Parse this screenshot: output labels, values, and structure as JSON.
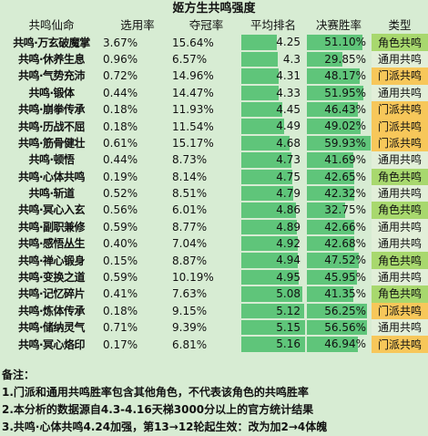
{
  "title": "姬方生共鸣强度",
  "headers": [
    "共鸣仙命",
    "选用率",
    "夺冠率",
    "平均排名",
    "决赛胜率",
    "类型"
  ],
  "type_colors": {
    "角色共鸣": "#a8d86e",
    "通用共鸣": "#e2efd9",
    "门派共鸣": "#f7c75a"
  },
  "chart_data": {
    "type": "table",
    "title": "姬方生共鸣强度",
    "columns": [
      "共鸣仙命",
      "选用率",
      "夺冠率",
      "平均排名",
      "决赛胜率",
      "类型"
    ],
    "rows": [
      [
        "共鸣·万玄破魔掌",
        "3.67%",
        "15.64%",
        "4.25",
        "51.10%",
        "角色共鸣"
      ],
      [
        "共鸣·休养生息",
        "0.96%",
        "6.57%",
        "4.3",
        "29.85%",
        "通用共鸣"
      ],
      [
        "共鸣·气势充沛",
        "0.72%",
        "14.96%",
        "4.31",
        "48.17%",
        "门派共鸣"
      ],
      [
        "共鸣·锻体",
        "0.44%",
        "14.47%",
        "4.33",
        "51.95%",
        "通用共鸣"
      ],
      [
        "共鸣·崩拳传承",
        "0.18%",
        "11.93%",
        "4.45",
        "46.43%",
        "门派共鸣"
      ],
      [
        "共鸣·历战不屈",
        "0.18%",
        "11.54%",
        "4.49",
        "49.02%",
        "门派共鸣"
      ],
      [
        "共鸣·筋骨健壮",
        "0.61%",
        "15.17%",
        "4.68",
        "59.93%",
        "门派共鸣"
      ],
      [
        "共鸣·顿悟",
        "0.44%",
        "8.73%",
        "4.73",
        "41.69%",
        "通用共鸣"
      ],
      [
        "共鸣·心体共鸣",
        "0.19%",
        "8.14%",
        "4.75",
        "42.65%",
        "角色共鸣"
      ],
      [
        "共鸣·斩道",
        "0.52%",
        "8.51%",
        "4.79",
        "42.32%",
        "通用共鸣"
      ],
      [
        "共鸣·冥心入玄",
        "0.56%",
        "6.01%",
        "4.86",
        "32.75%",
        "角色共鸣"
      ],
      [
        "共鸣·副职兼修",
        "0.59%",
        "8.77%",
        "4.89",
        "42.66%",
        "通用共鸣"
      ],
      [
        "共鸣·感悟丛生",
        "0.40%",
        "7.04%",
        "4.92",
        "42.68%",
        "通用共鸣"
      ],
      [
        "共鸣·禅心锻身",
        "0.15%",
        "8.87%",
        "4.94",
        "47.52%",
        "角色共鸣"
      ],
      [
        "共鸣·变换之道",
        "0.59%",
        "10.19%",
        "4.95",
        "45.95%",
        "通用共鸣"
      ],
      [
        "共鸣·记忆碎片",
        "0.41%",
        "7.63%",
        "5.08",
        "41.35%",
        "角色共鸣"
      ],
      [
        "共鸣·炼体传承",
        "0.18%",
        "9.15%",
        "5.12",
        "56.25%",
        "门派共鸣"
      ],
      [
        "共鸣·储纳灵气",
        "0.71%",
        "9.39%",
        "5.15",
        "56.56%",
        "通用共鸣"
      ],
      [
        "共鸣·冥心烙印",
        "0.17%",
        "6.81%",
        "5.16",
        "46.94%",
        "门派共鸣"
      ]
    ],
    "bar_columns": [
      "平均排名",
      "决赛胜率"
    ]
  },
  "notes": [
    "备注：",
    "1.门派和通用共鸣胜率包含其他角色，不代表该角色的共鸣胜率",
    "2.本分析的数据源自4.3-4.16天梯3000分以上的官方统计结果",
    "3.共鸣·心体共鸣4.24加强，第13→12轮起生效：改为加2→4体魄"
  ]
}
